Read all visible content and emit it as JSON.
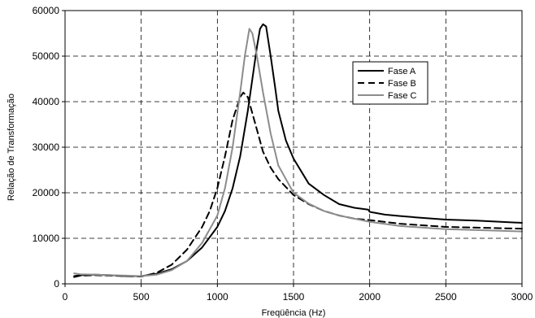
{
  "chart_data": {
    "type": "line",
    "title": "",
    "xlabel": "Freqüência (Hz)",
    "ylabel": "Relação de Transformação",
    "xlim": [
      0,
      3000
    ],
    "ylim": [
      0,
      60000
    ],
    "xticks": [
      "0",
      "500",
      "1000",
      "1500",
      "2000",
      "2500",
      "3000"
    ],
    "yticks": [
      "0",
      "10000",
      "20000",
      "30000",
      "40000",
      "50000",
      "60000"
    ],
    "grid": true,
    "legend_position": "right",
    "series": [
      {
        "name": "Fase A",
        "color": "#000000",
        "dash": "solid",
        "points": [
          [
            60,
            1700
          ],
          [
            100,
            1900
          ],
          [
            200,
            2000
          ],
          [
            300,
            1900
          ],
          [
            400,
            1700
          ],
          [
            500,
            1700
          ],
          [
            600,
            2200
          ],
          [
            700,
            3200
          ],
          [
            800,
            5000
          ],
          [
            900,
            8000
          ],
          [
            1000,
            12500
          ],
          [
            1050,
            16000
          ],
          [
            1100,
            21000
          ],
          [
            1150,
            28000
          ],
          [
            1200,
            38000
          ],
          [
            1230,
            45000
          ],
          [
            1260,
            52000
          ],
          [
            1280,
            56000
          ],
          [
            1300,
            57000
          ],
          [
            1320,
            56500
          ],
          [
            1350,
            50000
          ],
          [
            1380,
            43000
          ],
          [
            1400,
            38000
          ],
          [
            1450,
            31500
          ],
          [
            1500,
            27500
          ],
          [
            1600,
            22000
          ],
          [
            1700,
            19500
          ],
          [
            1800,
            17500
          ],
          [
            1900,
            16700
          ],
          [
            1990,
            16300
          ],
          [
            2000,
            15800
          ],
          [
            2100,
            15200
          ],
          [
            2200,
            14900
          ],
          [
            2300,
            14600
          ],
          [
            2500,
            14100
          ],
          [
            2700,
            13900
          ],
          [
            3000,
            13400
          ]
        ]
      },
      {
        "name": "Fase B",
        "color": "#000000",
        "dash": "dashed",
        "points": [
          [
            60,
            1500
          ],
          [
            100,
            1800
          ],
          [
            200,
            1900
          ],
          [
            300,
            1800
          ],
          [
            400,
            1700
          ],
          [
            500,
            1600
          ],
          [
            600,
            2400
          ],
          [
            700,
            4200
          ],
          [
            800,
            7500
          ],
          [
            900,
            12500
          ],
          [
            950,
            16000
          ],
          [
            1000,
            21000
          ],
          [
            1050,
            28000
          ],
          [
            1100,
            36000
          ],
          [
            1150,
            41000
          ],
          [
            1170,
            42000
          ],
          [
            1200,
            41000
          ],
          [
            1250,
            35000
          ],
          [
            1300,
            29000
          ],
          [
            1350,
            25500
          ],
          [
            1400,
            23000
          ],
          [
            1500,
            19500
          ],
          [
            1600,
            17500
          ],
          [
            1700,
            16000
          ],
          [
            1800,
            15000
          ],
          [
            1900,
            14300
          ],
          [
            2000,
            14000
          ],
          [
            2200,
            13200
          ],
          [
            2500,
            12500
          ],
          [
            3000,
            12100
          ]
        ]
      },
      {
        "name": "Fase C",
        "color": "#8c8c8c",
        "dash": "solid",
        "points": [
          [
            60,
            2300
          ],
          [
            100,
            2100
          ],
          [
            200,
            2000
          ],
          [
            300,
            1900
          ],
          [
            400,
            1800
          ],
          [
            500,
            1700
          ],
          [
            600,
            2000
          ],
          [
            700,
            3000
          ],
          [
            800,
            5000
          ],
          [
            900,
            9000
          ],
          [
            1000,
            15000
          ],
          [
            1050,
            21000
          ],
          [
            1100,
            30000
          ],
          [
            1150,
            42000
          ],
          [
            1180,
            50000
          ],
          [
            1210,
            56000
          ],
          [
            1230,
            55000
          ],
          [
            1260,
            50000
          ],
          [
            1300,
            42000
          ],
          [
            1350,
            33000
          ],
          [
            1400,
            26000
          ],
          [
            1450,
            23000
          ],
          [
            1500,
            20000
          ],
          [
            1600,
            17600
          ],
          [
            1700,
            16000
          ],
          [
            1800,
            15000
          ],
          [
            1900,
            14300
          ],
          [
            2000,
            13600
          ],
          [
            2200,
            12700
          ],
          [
            2500,
            12000
          ],
          [
            3000,
            11500
          ]
        ]
      }
    ]
  }
}
